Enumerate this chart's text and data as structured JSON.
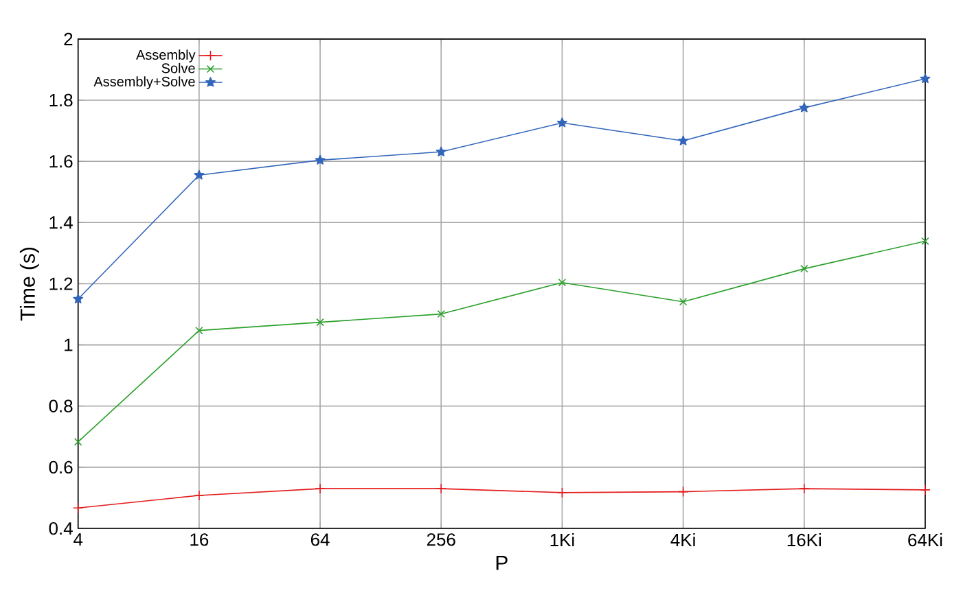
{
  "chart_data": {
    "type": "line",
    "xlabel": "P",
    "ylabel": "Time (s)",
    "categories": [
      "4",
      "16",
      "64",
      "256",
      "1Ki",
      "4Ki",
      "16Ki",
      "64Ki"
    ],
    "ylim": [
      0.4,
      2
    ],
    "yticks": [
      0.4,
      0.6,
      0.8,
      1,
      1.2,
      1.4,
      1.6,
      1.8,
      2
    ],
    "grid": true,
    "legend": "top left",
    "series": [
      {
        "name": "Assembly",
        "color": "#e41a1c",
        "marker": "plus",
        "values": [
          0.467,
          0.508,
          0.53,
          0.53,
          0.517,
          0.52,
          0.53,
          0.526
        ]
      },
      {
        "name": "Solve",
        "color": "#2ca02c",
        "marker": "cross",
        "values": [
          0.683,
          1.047,
          1.074,
          1.101,
          1.204,
          1.141,
          1.249,
          1.339
        ]
      },
      {
        "name": "Assembly+Solve",
        "color": "#3366bb",
        "marker": "star",
        "values": [
          1.15,
          1.555,
          1.604,
          1.631,
          1.726,
          1.667,
          1.775,
          1.87
        ]
      }
    ]
  }
}
